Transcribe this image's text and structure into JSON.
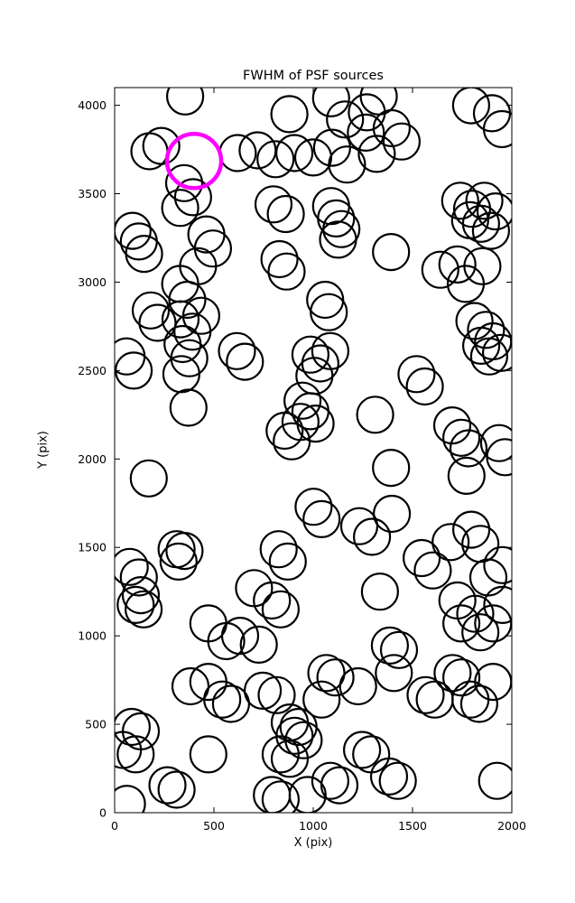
{
  "chart_data": {
    "type": "scatter",
    "title": "FWHM of PSF sources",
    "xlabel": "X (pix)",
    "ylabel": "Y (pix)",
    "xlim": [
      0,
      2000
    ],
    "ylim": [
      0,
      4100
    ],
    "grid": false,
    "legend": "none",
    "x_ticks": [
      {
        "v": 0,
        "label": "0"
      },
      {
        "v": 500,
        "label": "500"
      },
      {
        "v": 1000,
        "label": "1000"
      },
      {
        "v": 1500,
        "label": "1500"
      },
      {
        "v": 2000,
        "label": "2000"
      }
    ],
    "y_ticks": [
      {
        "v": 0,
        "label": "0"
      },
      {
        "v": 500,
        "label": "500"
      },
      {
        "v": 1000,
        "label": "1000"
      },
      {
        "v": 1500,
        "label": "1500"
      },
      {
        "v": 2000,
        "label": "2000"
      },
      {
        "v": 2500,
        "label": "2500"
      },
      {
        "v": 3000,
        "label": "3000"
      },
      {
        "v": 3500,
        "label": "3500"
      },
      {
        "v": 4000,
        "label": "4000"
      }
    ],
    "marker": {
      "shape": "open-circle",
      "color": "#000000",
      "radius_px": 20,
      "stroke_px": 2.2
    },
    "highlight": {
      "x": 400,
      "y": 3685,
      "color": "#ff00ff",
      "radius_px": 30,
      "stroke_px": 4.5
    },
    "points": [
      [
        355,
        4050
      ],
      [
        880,
        3950
      ],
      [
        1090,
        4040
      ],
      [
        1160,
        3920
      ],
      [
        1270,
        3960
      ],
      [
        1330,
        4050
      ],
      [
        1795,
        4000
      ],
      [
        1900,
        3955
      ],
      [
        1950,
        3865
      ],
      [
        175,
        3740
      ],
      [
        235,
        3770
      ],
      [
        620,
        3730
      ],
      [
        720,
        3745
      ],
      [
        810,
        3695
      ],
      [
        905,
        3730
      ],
      [
        1000,
        3705
      ],
      [
        1095,
        3760
      ],
      [
        1170,
        3665
      ],
      [
        1265,
        3845
      ],
      [
        1320,
        3725
      ],
      [
        1395,
        3870
      ],
      [
        1445,
        3795
      ],
      [
        350,
        3560
      ],
      [
        395,
        3480
      ],
      [
        330,
        3420
      ],
      [
        800,
        3440
      ],
      [
        862,
        3385
      ],
      [
        1090,
        3430
      ],
      [
        1115,
        3360
      ],
      [
        1142,
        3300
      ],
      [
        1125,
        3240
      ],
      [
        1740,
        3460
      ],
      [
        1800,
        3415
      ],
      [
        1862,
        3460
      ],
      [
        1790,
        3350
      ],
      [
        1845,
        3330
      ],
      [
        1895,
        3290
      ],
      [
        1918,
        3400
      ],
      [
        90,
        3290
      ],
      [
        122,
        3230
      ],
      [
        148,
        3160
      ],
      [
        462,
        3270
      ],
      [
        495,
        3190
      ],
      [
        420,
        3090
      ],
      [
        830,
        3130
      ],
      [
        866,
        3060
      ],
      [
        1392,
        3170
      ],
      [
        1640,
        3070
      ],
      [
        1726,
        3100
      ],
      [
        1768,
        2990
      ],
      [
        1852,
        3090
      ],
      [
        330,
        2990
      ],
      [
        366,
        2900
      ],
      [
        182,
        2840
      ],
      [
        216,
        2770
      ],
      [
        332,
        2790
      ],
      [
        436,
        2810
      ],
      [
        392,
        2720
      ],
      [
        1060,
        2900
      ],
      [
        1078,
        2830
      ],
      [
        1812,
        2780
      ],
      [
        1870,
        2730
      ],
      [
        1906,
        2665
      ],
      [
        1946,
        2600
      ],
      [
        1846,
        2640
      ],
      [
        1886,
        2580
      ],
      [
        60,
        2580
      ],
      [
        96,
        2500
      ],
      [
        342,
        2650
      ],
      [
        376,
        2570
      ],
      [
        336,
        2480
      ],
      [
        616,
        2610
      ],
      [
        656,
        2550
      ],
      [
        986,
        2590
      ],
      [
        1036,
        2540
      ],
      [
        1086,
        2610
      ],
      [
        1006,
        2470
      ],
      [
        1520,
        2480
      ],
      [
        1562,
        2410
      ],
      [
        372,
        2290
      ],
      [
        946,
        2330
      ],
      [
        986,
        2270
      ],
      [
        1012,
        2200
      ],
      [
        936,
        2210
      ],
      [
        856,
        2160
      ],
      [
        892,
        2100
      ],
      [
        1312,
        2250
      ],
      [
        1700,
        2190
      ],
      [
        1746,
        2120
      ],
      [
        1782,
        2060
      ],
      [
        1936,
        2090
      ],
      [
        1966,
        2010
      ],
      [
        172,
        1890
      ],
      [
        1392,
        1950
      ],
      [
        1772,
        1905
      ],
      [
        1002,
        1730
      ],
      [
        1042,
        1660
      ],
      [
        1232,
        1620
      ],
      [
        1296,
        1560
      ],
      [
        1396,
        1690
      ],
      [
        1692,
        1530
      ],
      [
        1796,
        1600
      ],
      [
        1842,
        1520
      ],
      [
        312,
        1490
      ],
      [
        352,
        1480
      ],
      [
        322,
        1420
      ],
      [
        76,
        1390
      ],
      [
        122,
        1330
      ],
      [
        826,
        1490
      ],
      [
        872,
        1420
      ],
      [
        1546,
        1440
      ],
      [
        1602,
        1370
      ],
      [
        1952,
        1400
      ],
      [
        1882,
        1330
      ],
      [
        106,
        1175
      ],
      [
        146,
        1150
      ],
      [
        132,
        1230
      ],
      [
        472,
        1070
      ],
      [
        562,
        970
      ],
      [
        702,
        1270
      ],
      [
        792,
        1200
      ],
      [
        836,
        1150
      ],
      [
        632,
        1000
      ],
      [
        726,
        950
      ],
      [
        1336,
        1250
      ],
      [
        1726,
        1200
      ],
      [
        1816,
        1125
      ],
      [
        1906,
        1070
      ],
      [
        1746,
        1070
      ],
      [
        1842,
        1020
      ],
      [
        1952,
        1175
      ],
      [
        382,
        715
      ],
      [
        472,
        740
      ],
      [
        542,
        640
      ],
      [
        586,
        615
      ],
      [
        746,
        690
      ],
      [
        816,
        665
      ],
      [
        1066,
        790
      ],
      [
        1112,
        765
      ],
      [
        1042,
        640
      ],
      [
        1226,
        715
      ],
      [
        1386,
        945
      ],
      [
        1432,
        920
      ],
      [
        1406,
        790
      ],
      [
        1566,
        665
      ],
      [
        1612,
        640
      ],
      [
        1702,
        790
      ],
      [
        1746,
        765
      ],
      [
        1792,
        640
      ],
      [
        1836,
        615
      ],
      [
        1906,
        740
      ],
      [
        882,
        510
      ],
      [
        926,
        485
      ],
      [
        906,
        435
      ],
      [
        952,
        410
      ],
      [
        836,
        330
      ],
      [
        882,
        305
      ],
      [
        1246,
        355
      ],
      [
        1292,
        330
      ],
      [
        86,
        485
      ],
      [
        132,
        460
      ],
      [
        42,
        355
      ],
      [
        106,
        330
      ],
      [
        472,
        330
      ],
      [
        792,
        100
      ],
      [
        836,
        75
      ],
      [
        1382,
        205
      ],
      [
        1426,
        180
      ],
      [
        1926,
        180
      ],
      [
        1086,
        180
      ],
      [
        1132,
        155
      ],
      [
        972,
        100
      ],
      [
        266,
        155
      ],
      [
        312,
        130
      ],
      [
        62,
        50
      ]
    ]
  }
}
